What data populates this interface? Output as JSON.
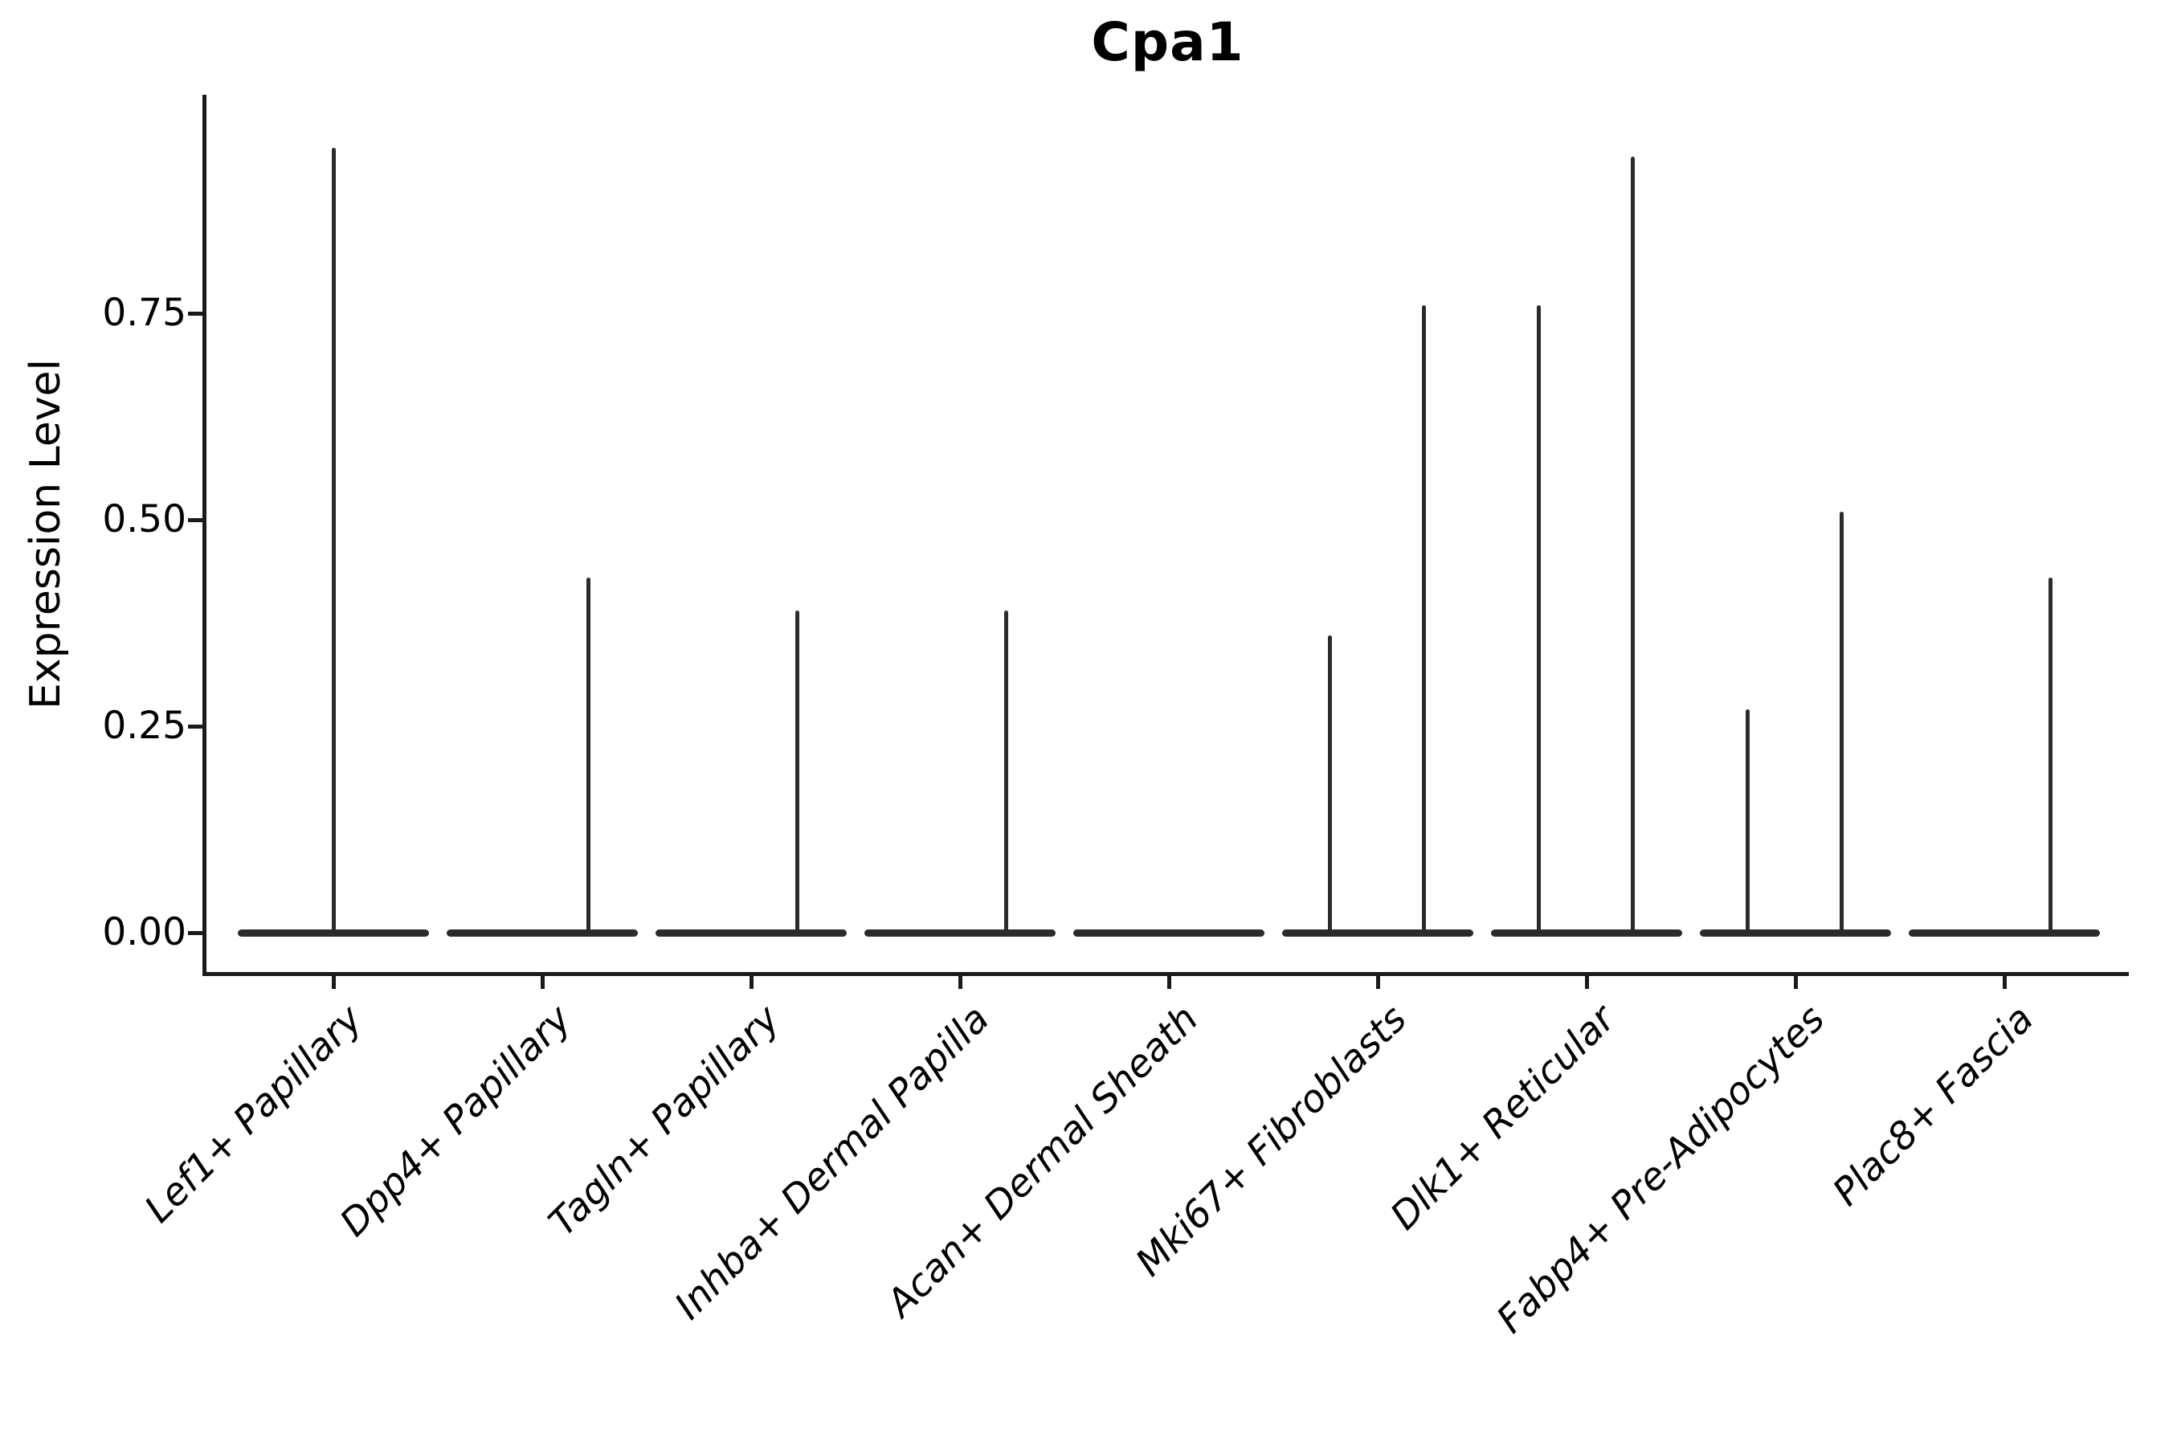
{
  "chart_data": {
    "type": "violin",
    "title": "Cpa1",
    "xlabel": "",
    "ylabel": "Expression Level",
    "ylim": [
      -0.05,
      1.0
    ],
    "grid": false,
    "legend": "none",
    "ytick_labels": [
      "0.00",
      "0.25",
      "0.50",
      "0.75"
    ],
    "ytick_values": [
      0.0,
      0.25,
      0.5,
      0.75
    ],
    "categories": [
      "Lef1+ Papillary",
      "Dpp4+ Papillary",
      "Tagln+ Papillary",
      "Inhba+ Dermal Papilla",
      "Acan+ Dermal Sheath",
      "Mki67+ Fibroblasts",
      "Dlk1+ Reticular",
      "Fabp4+ Pre-Adipocytes",
      "Plac8+ Fascia"
    ],
    "violins": [
      {
        "category": "Lef1+ Papillary",
        "baseline_value": 0.0,
        "spikes": [
          {
            "x_offset": 0.0,
            "max": 0.95
          }
        ]
      },
      {
        "category": "Dpp4+ Papillary",
        "baseline_value": 0.0,
        "spikes": [
          {
            "x_offset": 0.22,
            "max": 0.43
          }
        ]
      },
      {
        "category": "Tagln+ Papillary",
        "baseline_value": 0.0,
        "spikes": [
          {
            "x_offset": 0.22,
            "max": 0.39
          }
        ]
      },
      {
        "category": "Inhba+ Dermal Papilla",
        "baseline_value": 0.0,
        "spikes": [
          {
            "x_offset": 0.22,
            "max": 0.39
          }
        ]
      },
      {
        "category": "Acan+ Dermal Sheath",
        "baseline_value": 0.0,
        "spikes": []
      },
      {
        "category": "Mki67+ Fibroblasts",
        "baseline_value": 0.0,
        "spikes": [
          {
            "x_offset": -0.23,
            "max": 0.36
          },
          {
            "x_offset": 0.22,
            "max": 0.76
          }
        ]
      },
      {
        "category": "Dlk1+ Reticular",
        "baseline_value": 0.0,
        "spikes": [
          {
            "x_offset": -0.23,
            "max": 0.76
          },
          {
            "x_offset": 0.22,
            "max": 0.94
          }
        ]
      },
      {
        "category": "Fabp4+ Pre-Adipocytes",
        "baseline_value": 0.0,
        "spikes": [
          {
            "x_offset": -0.23,
            "max": 0.27
          },
          {
            "x_offset": 0.22,
            "max": 0.51
          }
        ]
      },
      {
        "category": "Plac8+ Fascia",
        "baseline_value": 0.0,
        "spikes": [
          {
            "x_offset": 0.22,
            "max": 0.43
          }
        ]
      }
    ],
    "colors": {
      "stroke": "#2b2b2b",
      "axis": "#1a1a1a",
      "text": "#000000",
      "background": "#ffffff"
    }
  }
}
